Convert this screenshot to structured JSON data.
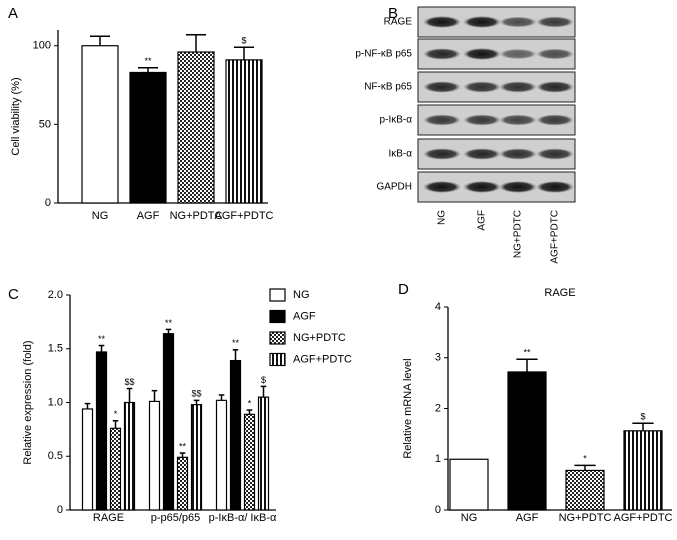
{
  "chart_data": [
    {
      "panel": "A",
      "type": "bar",
      "ylabel": "Cell viability (%)",
      "categories": [
        "NG",
        "AGF",
        "NG+PDTC",
        "AGF+PDTC"
      ],
      "values": [
        100,
        83,
        96,
        91
      ],
      "errors": [
        6,
        3,
        11,
        8
      ],
      "annotations": [
        null,
        "**",
        null,
        "$"
      ],
      "patterns": [
        "white",
        "black",
        "checker",
        "stripes"
      ],
      "color": "#000000",
      "ylim": [
        0,
        110
      ],
      "yticks": [
        0,
        50,
        100
      ]
    },
    {
      "panel": "C",
      "type": "grouped_bar",
      "ylabel": "Relative expression (fold)",
      "categories": [
        "RAGE",
        "p-p65/p65",
        "p-IκB-α/ IκB-α"
      ],
      "color": "#000000",
      "series": [
        {
          "name": "NG",
          "pattern": "white",
          "values": [
            0.94,
            1.01,
            1.02
          ],
          "errors": [
            0.05,
            0.1,
            0.05
          ],
          "annotations": [
            null,
            null,
            null
          ]
        },
        {
          "name": "AGF",
          "pattern": "black",
          "values": [
            1.47,
            1.64,
            1.39
          ],
          "errors": [
            0.06,
            0.04,
            0.1
          ],
          "annotations": [
            "**",
            "**",
            "**"
          ]
        },
        {
          "name": "NG+PDTC",
          "pattern": "checker",
          "values": [
            0.76,
            0.49,
            0.89
          ],
          "errors": [
            0.07,
            0.04,
            0.04
          ],
          "annotations": [
            "*",
            "**",
            "*"
          ]
        },
        {
          "name": "AGF+PDTC",
          "pattern": "stripes",
          "values": [
            1.0,
            0.98,
            1.05
          ],
          "errors": [
            0.13,
            0.04,
            0.1
          ],
          "annotations": [
            "$$",
            "$$",
            "$"
          ]
        }
      ],
      "ylim": [
        0,
        2
      ],
      "yticks": [
        0,
        0.5,
        {
          "value": 1,
          "label": "1.0"
        },
        1.5,
        {
          "value": 2,
          "label": "2.0"
        }
      ],
      "legend": "upper right"
    },
    {
      "panel": "D",
      "type": "bar",
      "title": "RAGE",
      "ylabel": "Relative mRNA level",
      "categories": [
        "NG",
        "AGF",
        "NG+PDTC",
        "AGF+PDTC"
      ],
      "values": [
        1.0,
        2.72,
        0.78,
        1.56
      ],
      "errors": [
        0,
        0.25,
        0.1,
        0.15
      ],
      "annotations": [
        null,
        "**",
        "*",
        "$"
      ],
      "patterns": [
        "white",
        "black",
        "checker",
        "stripes"
      ],
      "color": "#000000",
      "ylim": [
        0,
        4
      ],
      "yticks": [
        0,
        1,
        2,
        3,
        4
      ]
    }
  ],
  "blot": {
    "panel": "B",
    "rows": [
      "RAGE",
      "p-NF-κB p65",
      "NF-κB p65",
      "p-IκB-α",
      "IκB-α",
      "GAPDH"
    ],
    "lanes": [
      "NG",
      "AGF",
      "NG+PDTC",
      "AGF+PDTC"
    ]
  }
}
